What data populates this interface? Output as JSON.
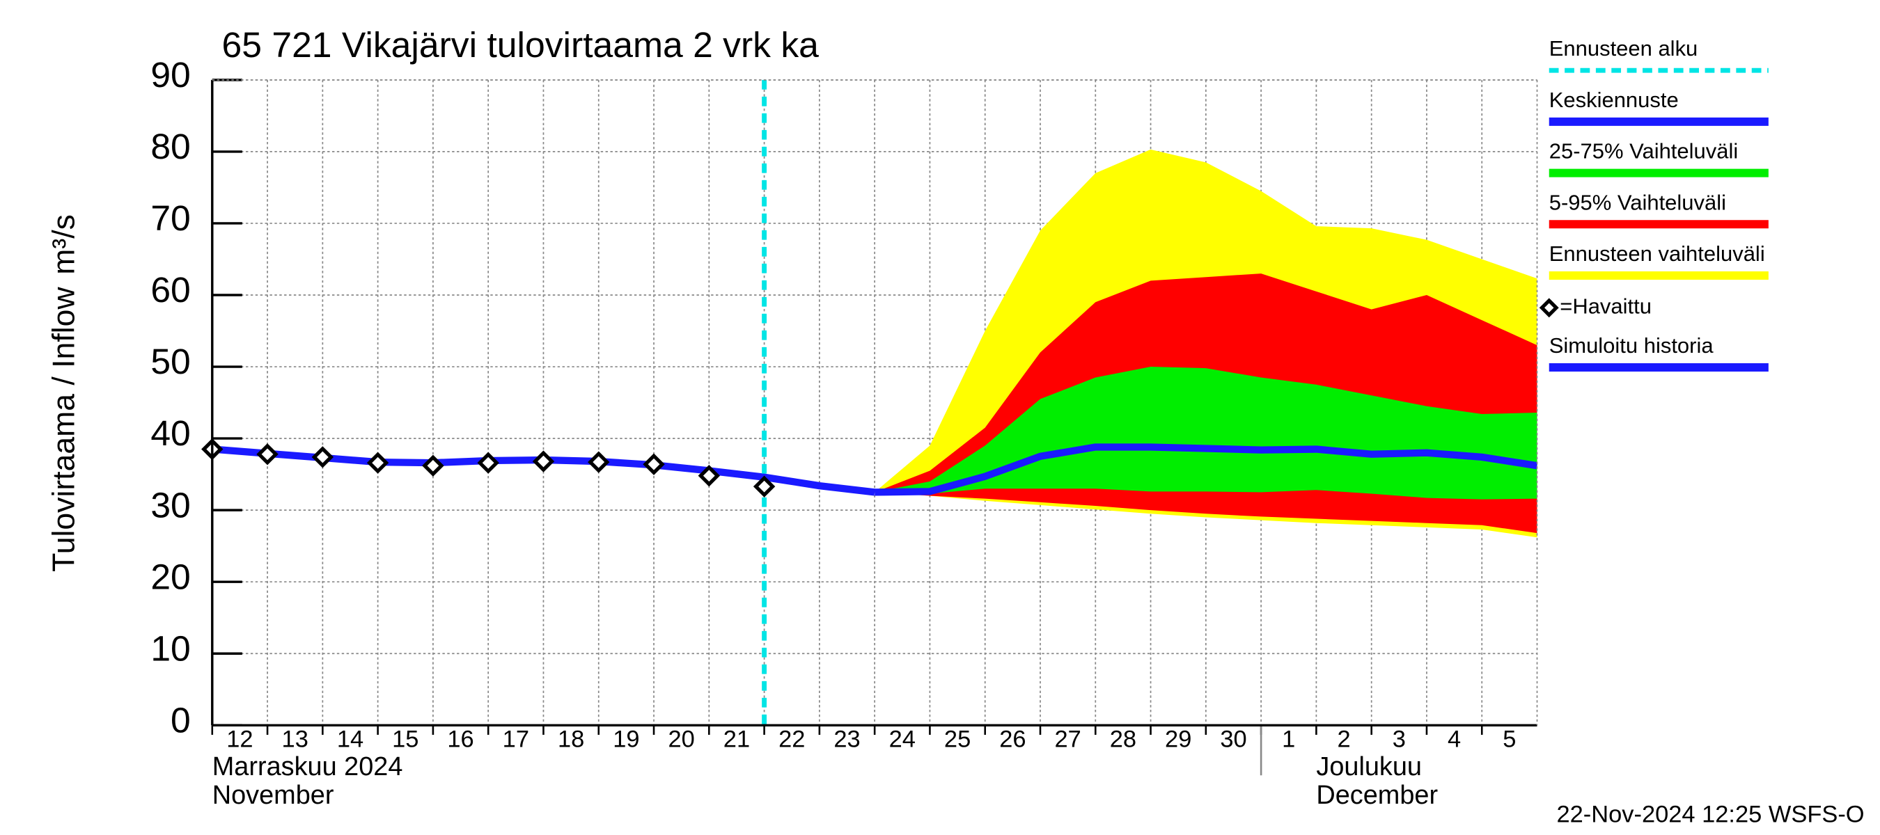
{
  "chart_data": {
    "type": "area",
    "title": "65 721 Vikajärvi tulovirtaama 2 vrk ka",
    "y_label": "Tulovirtaama / Inflow",
    "y_unit": "m³/s",
    "xlim": [
      0,
      24
    ],
    "ylim": [
      0,
      90
    ],
    "yticks": [
      0,
      10,
      20,
      30,
      40,
      50,
      60,
      70,
      80,
      90
    ],
    "xticks": [
      {
        "value": 0,
        "label": "12"
      },
      {
        "value": 1,
        "label": "13"
      },
      {
        "value": 2,
        "label": "14"
      },
      {
        "value": 3,
        "label": "15"
      },
      {
        "value": 4,
        "label": "16"
      },
      {
        "value": 5,
        "label": "17"
      },
      {
        "value": 6,
        "label": "18"
      },
      {
        "value": 7,
        "label": "19"
      },
      {
        "value": 8,
        "label": "20"
      },
      {
        "value": 9,
        "label": "21"
      },
      {
        "value": 10,
        "label": "22"
      },
      {
        "value": 11,
        "label": "23"
      },
      {
        "value": 12,
        "label": "24"
      },
      {
        "value": 13,
        "label": "25"
      },
      {
        "value": 14,
        "label": "26"
      },
      {
        "value": 15,
        "label": "27"
      },
      {
        "value": 16,
        "label": "28"
      },
      {
        "value": 17,
        "label": "29"
      },
      {
        "value": 18,
        "label": "30"
      },
      {
        "value": 19,
        "label": "1"
      },
      {
        "value": 20,
        "label": "2"
      },
      {
        "value": 21,
        "label": "3"
      },
      {
        "value": 22,
        "label": "4"
      },
      {
        "value": 23,
        "label": "5"
      }
    ],
    "grid": true,
    "months": [
      {
        "x": 0,
        "label": "Marraskuu 2024",
        "label_en": "November"
      },
      {
        "x": 19,
        "label": "Joulukuu",
        "label_en": "December"
      }
    ],
    "forecast_start": {
      "name": "Ennusteen alku",
      "color": "#00e5e5",
      "x": 10
    },
    "bands": [
      {
        "name": "Ennusteen vaihteluväli",
        "color": "#ffff00",
        "x": [
          12,
          13,
          14,
          15,
          16,
          17,
          18,
          19,
          20,
          21,
          22,
          23,
          24
        ],
        "values": [
          32.5,
          39,
          55,
          69,
          77,
          80.3,
          78.5,
          74.5,
          69.6,
          69.3,
          67.7,
          65,
          62.3
        ],
        "lower": [
          32.5,
          32.0,
          31.3,
          30.7,
          30.1,
          29.5,
          29.0,
          28.6,
          28.2,
          27.9,
          27.6,
          27.3,
          26.2
        ]
      },
      {
        "name": "5-95% Vaihteluväli",
        "color": "#ff0000",
        "x": [
          12,
          13,
          14,
          15,
          16,
          17,
          18,
          19,
          20,
          21,
          22,
          23,
          24
        ],
        "values": [
          32.5,
          35.5,
          41.5,
          52,
          59,
          62,
          62.5,
          63,
          60.5,
          58,
          60,
          56.5,
          53
        ],
        "lower": [
          32.5,
          32.0,
          31.6,
          31.1,
          30.6,
          30.0,
          29.5,
          29.1,
          28.8,
          28.5,
          28.2,
          27.9,
          26.8
        ]
      },
      {
        "name": "25-75% Vaihteluväli",
        "color": "#00ee00",
        "x": [
          12,
          13,
          14,
          15,
          16,
          17,
          18,
          19,
          20,
          21,
          22,
          23,
          24
        ],
        "values": [
          32.5,
          34,
          39,
          45.5,
          48.5,
          50,
          49.8,
          48.5,
          47.5,
          46,
          44.5,
          43.4,
          43.6
        ],
        "lower": [
          32.5,
          32.3,
          33,
          33,
          33,
          32.6,
          32.6,
          32.5,
          32.8,
          32.3,
          31.7,
          31.5,
          31.6
        ]
      }
    ],
    "series": [
      {
        "name": "Keskiennuste",
        "color": "#1a1aff",
        "x": [
          12,
          13,
          14,
          15,
          16,
          17,
          18,
          19,
          20,
          21,
          22,
          23,
          24
        ],
        "values": [
          32.5,
          32.6,
          34.7,
          37.5,
          38.8,
          38.8,
          38.6,
          38.4,
          38.5,
          37.8,
          38.0,
          37.4,
          36.2
        ]
      },
      {
        "name": "Simuloitu historia",
        "color": "#1a1aff",
        "x": [
          0,
          1,
          2,
          3,
          4,
          5,
          6,
          7,
          8,
          9,
          10,
          11,
          12
        ],
        "values": [
          38.5,
          37.9,
          37.3,
          36.7,
          36.6,
          36.9,
          37.0,
          36.8,
          36.3,
          35.5,
          34.6,
          33.4,
          32.5
        ]
      }
    ],
    "observed": {
      "name": "=Havaittu",
      "x": [
        0,
        1,
        2,
        3,
        4,
        5,
        6,
        7,
        8,
        9,
        10
      ],
      "values": [
        38.5,
        37.8,
        37.4,
        36.6,
        36.2,
        36.6,
        36.8,
        36.7,
        36.4,
        34.8,
        33.3
      ]
    },
    "timestamp": "22-Nov-2024 12:25 WSFS-O"
  }
}
